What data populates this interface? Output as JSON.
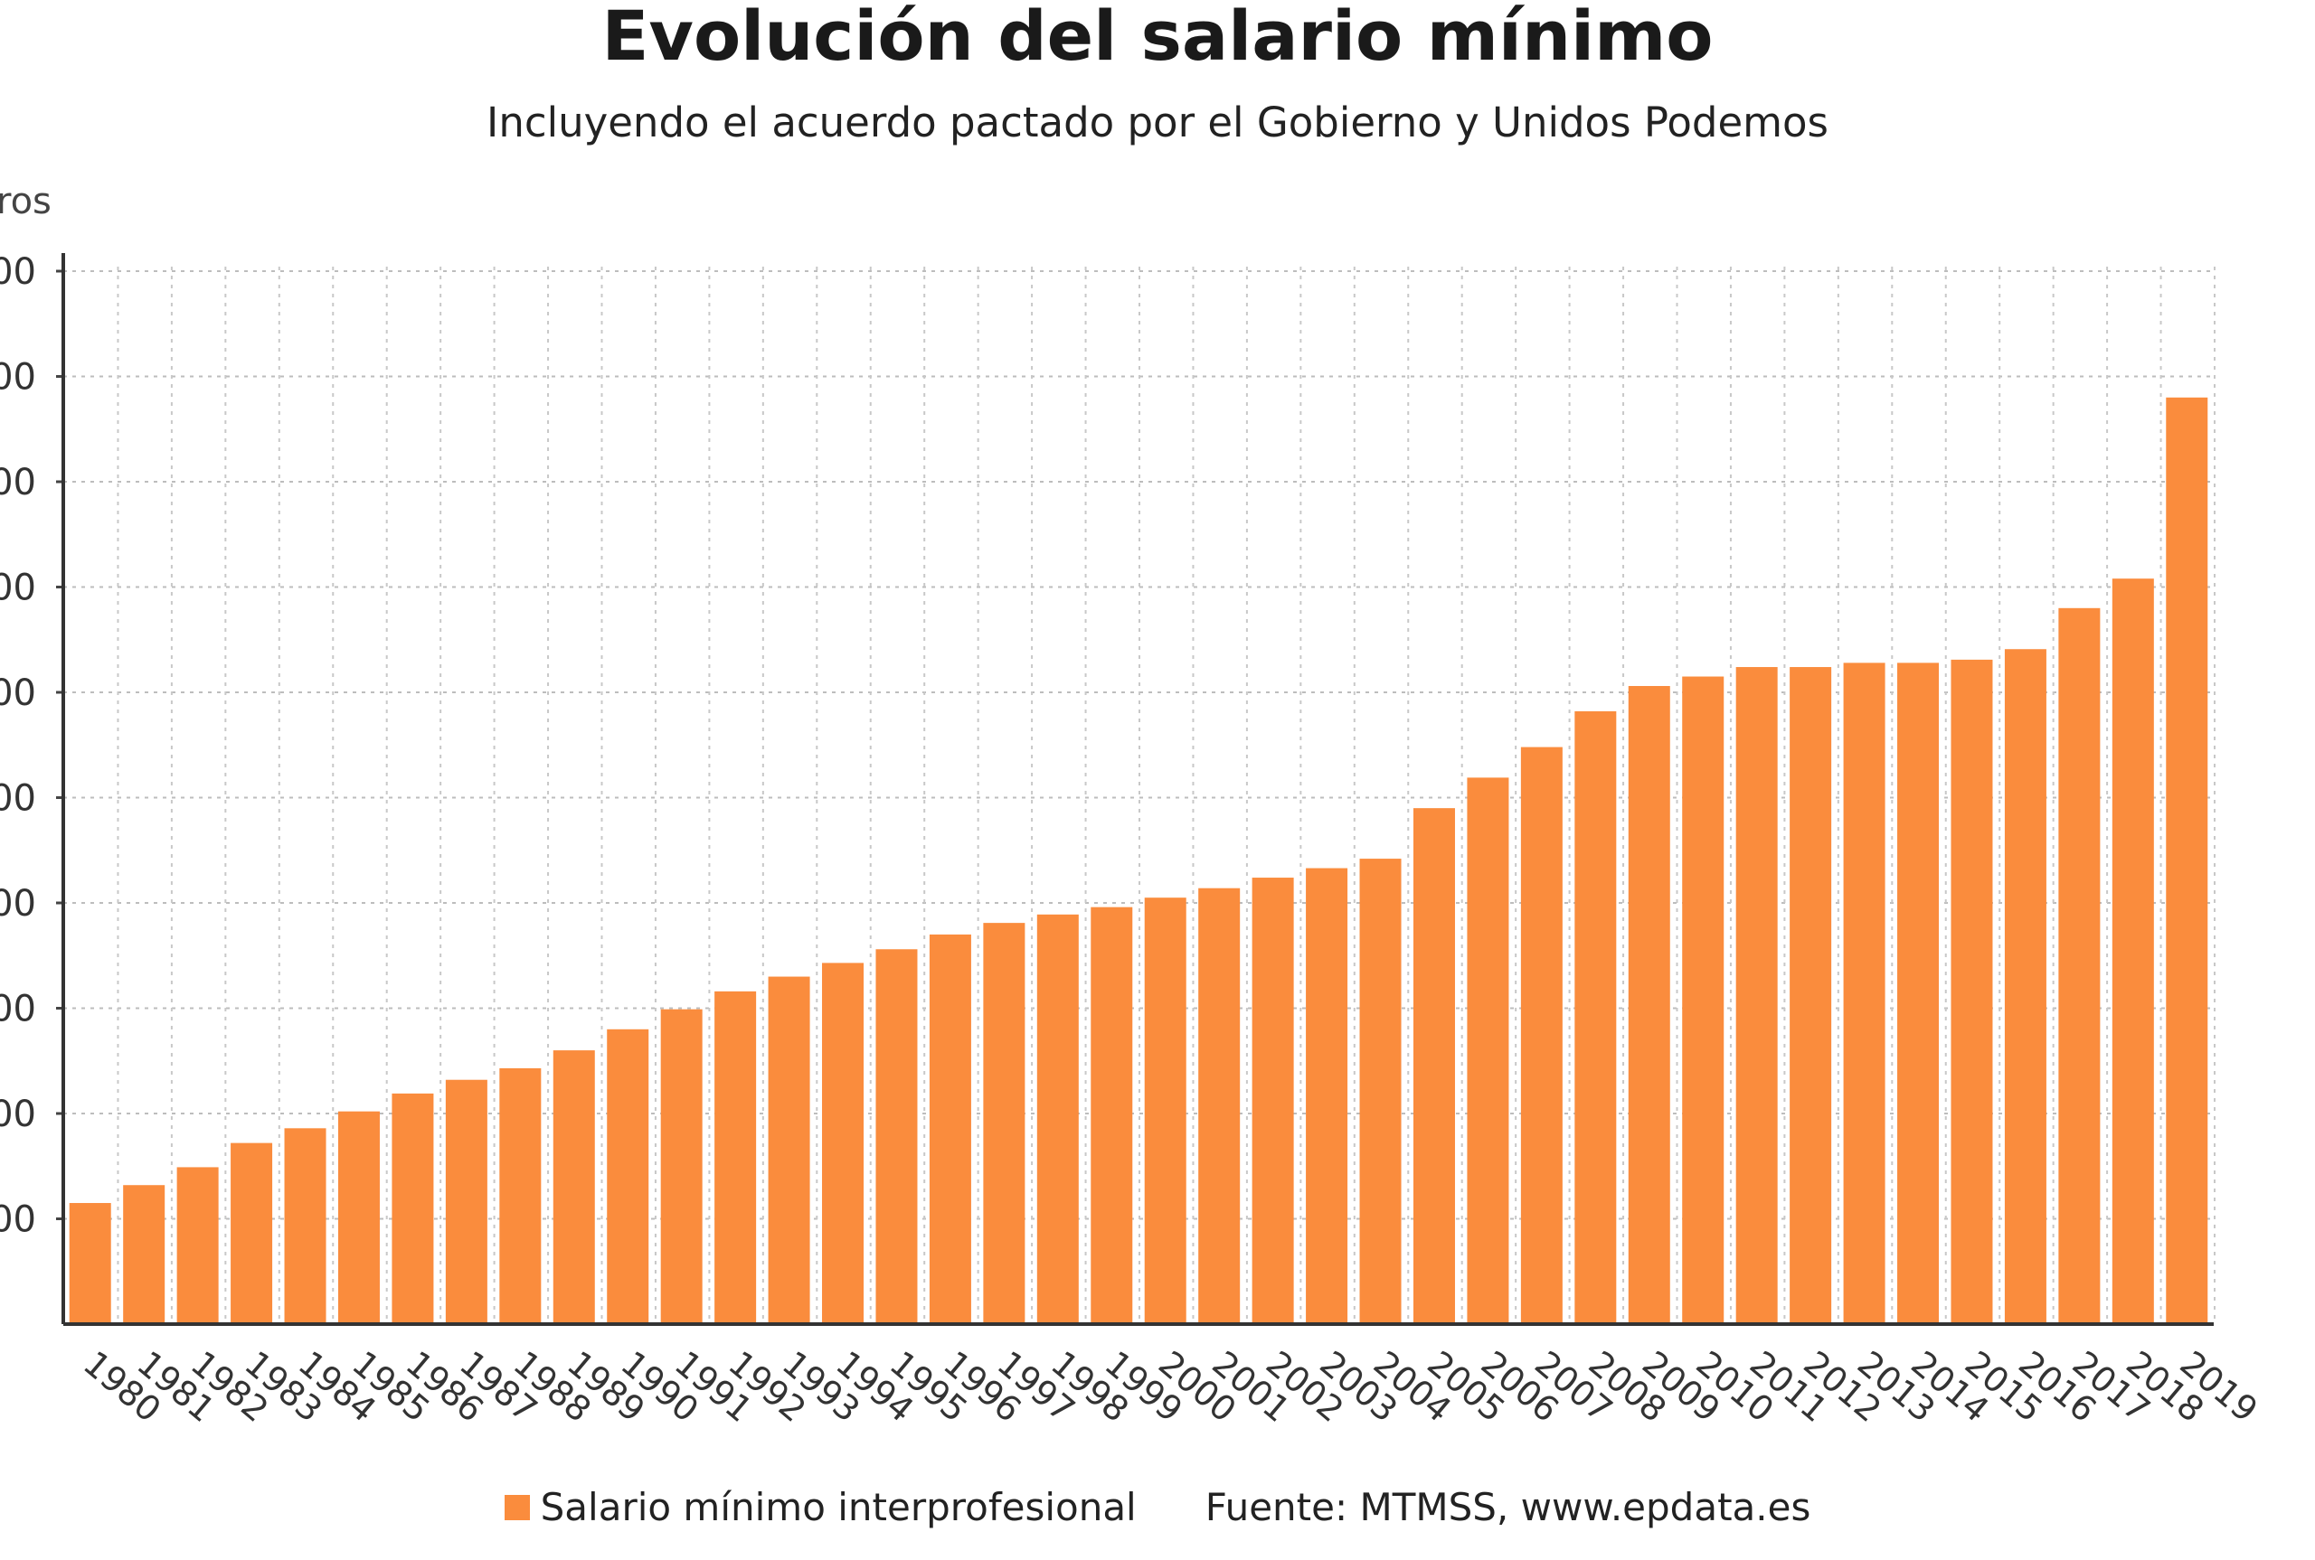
{
  "chart_data": {
    "type": "bar",
    "title": "Evolución del salario mínimo",
    "subtitle": "Incluyendo el acuerdo pactado por el Gobierno y Unidos Podemos",
    "ylabel": "ros",
    "xlabel": "",
    "ylim": [
      0,
      1000
    ],
    "y_ticks": [
      "00",
      "00",
      "00",
      "00",
      "00",
      "00",
      "00",
      "00",
      "00",
      "00"
    ],
    "categories": [
      "1980",
      "1981",
      "1982",
      "1983",
      "1984",
      "1985",
      "1986",
      "1987",
      "1988",
      "1989",
      "1990",
      "1991",
      "1992",
      "1993",
      "1994",
      "1995",
      "1996",
      "1997",
      "1998",
      "1999",
      "2000",
      "2001",
      "2002",
      "2003",
      "2004",
      "2005",
      "2006",
      "2007",
      "2008",
      "2009",
      "2010",
      "2011",
      "2012",
      "2013",
      "2014",
      "2015",
      "2016",
      "2017",
      "2018",
      "2019"
    ],
    "values": [
      115,
      132,
      149,
      172,
      186,
      202,
      219,
      232,
      243,
      260,
      280,
      299,
      316,
      330,
      343,
      356,
      370,
      381,
      389,
      396,
      405,
      414,
      424,
      433,
      442,
      490,
      519,
      548,
      582,
      606,
      615,
      624,
      624,
      628,
      628,
      631,
      641,
      680,
      708,
      880
    ],
    "color": "#fa8c3d",
    "grid": true,
    "legend": "bottom-center",
    "series": [
      {
        "name": "Salario mínimo interprofesional"
      }
    ]
  },
  "source": "Fuente: MTMSS, www.epdata.es"
}
